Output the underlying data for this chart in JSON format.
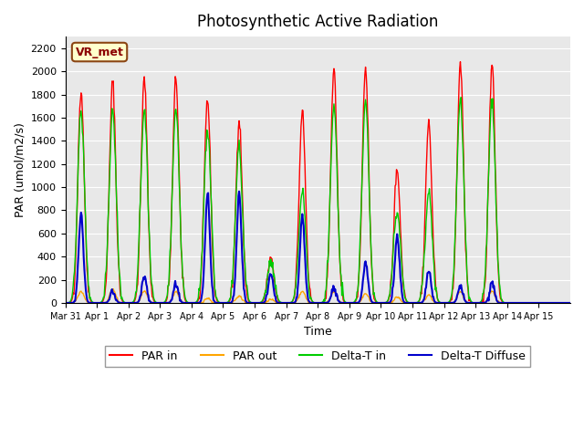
{
  "title": "Photosynthetic Active Radiation",
  "xlabel": "Time",
  "ylabel": "PAR (umol/m2/s)",
  "ylim": [
    0,
    2300
  ],
  "background_color": "#e8e8e8",
  "line_colors": {
    "PAR_in": "#ff0000",
    "PAR_out": "#ffa500",
    "Delta_T_in": "#00cc00",
    "Delta_T_Diffuse": "#0000cc"
  },
  "legend_labels": [
    "PAR in",
    "PAR out",
    "Delta-T in",
    "Delta-T Diffuse"
  ],
  "watermark_text": "VR_met",
  "yticks": [
    0,
    200,
    400,
    600,
    800,
    1000,
    1200,
    1400,
    1600,
    1800,
    2000,
    2200
  ],
  "xtick_labels": [
    "Mar 31",
    "Apr 1",
    "Apr 2",
    "Apr 3",
    "Apr 4",
    "Apr 5",
    "Apr 6",
    "Apr 7",
    "Apr 8",
    "Apr 9",
    "Apr 10",
    "Apr 11",
    "Apr 12",
    "Apr 13",
    "Apr 14",
    "Apr 15"
  ],
  "n_days": 16,
  "points_per_day": 48,
  "day_peaks_PAR_in": [
    1830,
    1910,
    1930,
    1940,
    1760,
    1580,
    370,
    1650,
    2020,
    2040,
    1160,
    1550,
    2060,
    2060,
    0,
    0
  ],
  "day_peaks_PAR_out": [
    100,
    120,
    100,
    100,
    40,
    60,
    30,
    100,
    100,
    80,
    50,
    70,
    100,
    100,
    0,
    0
  ],
  "day_peaks_DeltaT_in": [
    1660,
    1660,
    1660,
    1660,
    1500,
    1350,
    350,
    960,
    1700,
    1720,
    800,
    960,
    1760,
    1750,
    0,
    0
  ],
  "day_peaks_DeltaT_diff": [
    770,
    100,
    230,
    160,
    940,
    950,
    250,
    760,
    130,
    350,
    580,
    280,
    150,
    170,
    0,
    0
  ]
}
